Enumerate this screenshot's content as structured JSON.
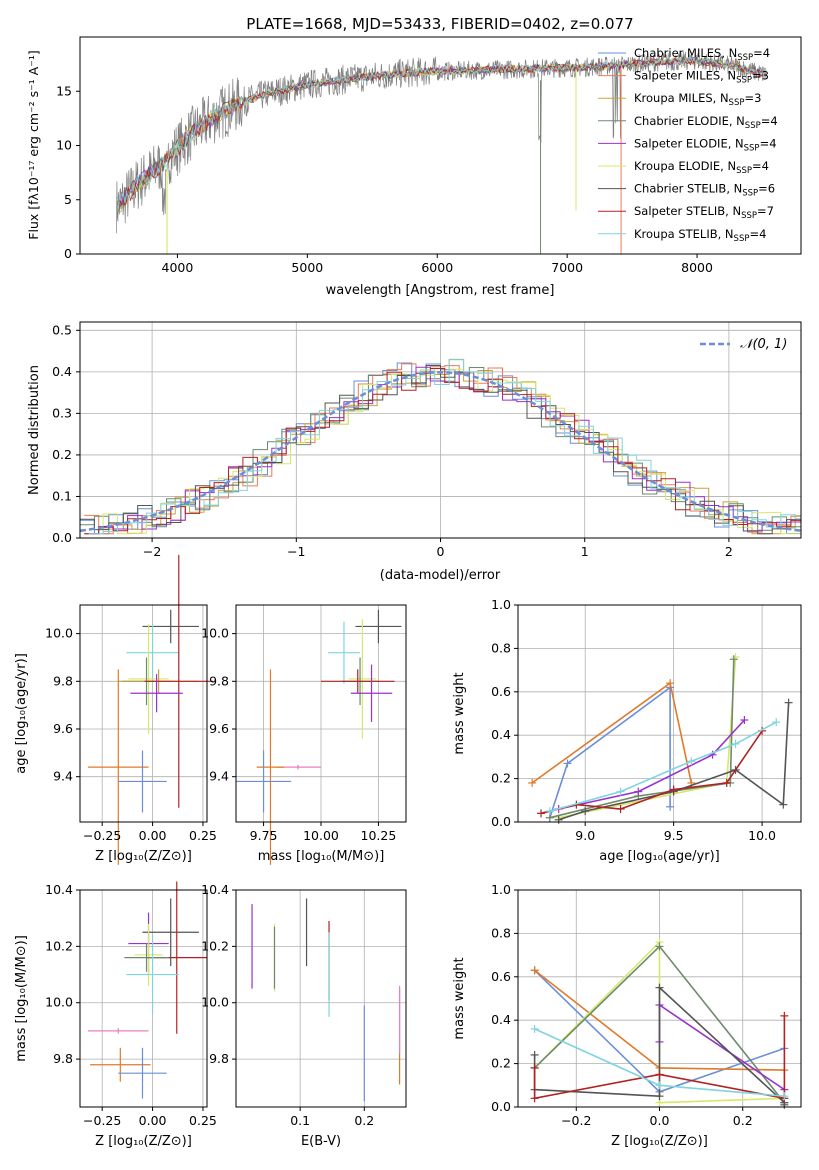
{
  "colors": {
    "chabrier_miles": "#6a8fd8",
    "salpeter_miles": "#ee7a55",
    "kroupa_miles": "#c9a23c",
    "chabrier_elodie": "#6e8a6e",
    "salpeter_elodie": "#9932cc",
    "kroupa_elodie": "#d6e86a",
    "chabrier_stelib": "#555555",
    "salpeter_stelib": "#b22222",
    "kroupa_stelib": "#80d4e0",
    "orange": "#e07a2a",
    "green": "#9acd32",
    "pink": "#e87fc0",
    "gray": "#7f7f7f",
    "normal": "#6a8fd8"
  },
  "chart_data": [
    {
      "id": "spectrum",
      "type": "line",
      "title": "PLATE=1668, MJD=53433, FIBERID=0402, z=0.077",
      "xlabel": "wavelength [Angstrom, rest frame]",
      "ylabel": "Flux [fλ10⁻¹⁷ erg cm⁻² s⁻¹ A⁻¹]",
      "xlim": [
        3250,
        8800
      ],
      "ylim": [
        0,
        20
      ],
      "xticks": [
        4000,
        5000,
        6000,
        7000,
        8000
      ],
      "yticks": [
        0,
        5,
        10,
        15
      ],
      "legend_position": "top-right",
      "continuum": {
        "x": [
          3550,
          3700,
          3900,
          4100,
          4300,
          4500,
          4700,
          5000,
          5300,
          5600,
          5900,
          6200,
          6500,
          6800,
          7100,
          7400,
          7700,
          8000,
          8300,
          8500
        ],
        "y": [
          4.5,
          6.5,
          8.5,
          11.0,
          12.8,
          14.0,
          14.8,
          15.6,
          16.1,
          16.5,
          16.8,
          16.9,
          17.0,
          17.1,
          17.2,
          17.4,
          17.7,
          17.8,
          17.3,
          16.6
        ]
      },
      "series": [
        {
          "name": "Chabrier MILES, N_SSP=4",
          "label": "Chabrier MILES, N",
          "sub": "SSP",
          "count": "=4",
          "color_key": "chabrier_miles"
        },
        {
          "name": "Salpeter MILES, N_SSP=3",
          "label": "Salpeter MILES, N",
          "sub": "SSP",
          "count": "=3",
          "color_key": "salpeter_miles"
        },
        {
          "name": "Kroupa MILES, N_SSP=3",
          "label": "Kroupa MILES, N",
          "sub": "SSP",
          "count": "=3",
          "color_key": "kroupa_miles"
        },
        {
          "name": "Chabrier ELODIE, N_SSP=4",
          "label": "Chabrier ELODIE, N",
          "sub": "SSP",
          "count": "=4",
          "color_key": "chabrier_elodie"
        },
        {
          "name": "Salpeter ELODIE, N_SSP=4",
          "label": "Salpeter ELODIE, N",
          "sub": "SSP",
          "count": "=4",
          "color_key": "salpeter_elodie"
        },
        {
          "name": "Kroupa ELODIE, N_SSP=4",
          "label": "Kroupa ELODIE, N",
          "sub": "SSP",
          "count": "=4",
          "color_key": "kroupa_elodie"
        },
        {
          "name": "Chabrier STELIB, N_SSP=6",
          "label": "Chabrier STELIB, N",
          "sub": "SSP",
          "count": "=6",
          "color_key": "chabrier_stelib"
        },
        {
          "name": "Salpeter STELIB, N_SSP=7",
          "label": "Salpeter STELIB, N",
          "sub": "SSP",
          "count": "=7",
          "color_key": "salpeter_stelib"
        },
        {
          "name": "Kroupa STELIB, N_SSP=4",
          "label": "Kroupa STELIB, N",
          "sub": "SSP",
          "count": "=4",
          "color_key": "kroupa_stelib"
        }
      ]
    },
    {
      "id": "residuals",
      "type": "histogram",
      "xlabel": "(data-model)/error",
      "ylabel": "Normed distribution",
      "xlim": [
        -2.5,
        2.5
      ],
      "ylim": [
        0,
        0.52
      ],
      "xticks": [
        -2,
        -1,
        0,
        1,
        2
      ],
      "yticks": [
        0.0,
        0.1,
        0.2,
        0.3,
        0.4,
        0.5
      ],
      "bin_width": 0.1,
      "normal_label": "𝒩(0, 1)",
      "legend_position": "top-right"
    },
    {
      "id": "age_vs_z",
      "type": "errorbar",
      "xlabel": "Z [log₁₀(Z/Z⊙)]",
      "ylabel": "age  [log₁₀(age/yr)]",
      "xlim": [
        -0.36,
        0.27
      ],
      "ylim": [
        9.21,
        10.12
      ],
      "xticks": [
        -0.25,
        0.0,
        0.25
      ],
      "yticks": [
        9.4,
        9.6,
        9.8,
        10.0
      ],
      "points": [
        {
          "x": 0.09,
          "y": 10.03,
          "xerr": 0.14,
          "yerr": 0.07,
          "color_key": "chabrier_stelib"
        },
        {
          "x": 0.0,
          "y": 9.92,
          "xerr": 0.13,
          "yerr": 0.12,
          "color_key": "kroupa_stelib"
        },
        {
          "x": -0.02,
          "y": 9.81,
          "xerr": 0.1,
          "yerr": 0.23,
          "color_key": "kroupa_elodie"
        },
        {
          "x": -0.03,
          "y": 9.8,
          "xerr": 0.12,
          "yerr": 0.1,
          "color_key": "chabrier_elodie"
        },
        {
          "x": 0.03,
          "y": 9.8,
          "xerr": 0.2,
          "yerr": 0.05,
          "color_key": "kroupa_miles"
        },
        {
          "x": 0.13,
          "y": 9.8,
          "xerr": 0.17,
          "yerr": 0.53,
          "color_key": "salpeter_stelib"
        },
        {
          "x": 0.02,
          "y": 9.75,
          "xerr": 0.13,
          "yerr": 0.08,
          "color_key": "salpeter_elodie"
        },
        {
          "x": -0.17,
          "y": 9.44,
          "xerr": 0.15,
          "yerr": 0.41,
          "color_key": "orange"
        },
        {
          "x": -0.05,
          "y": 9.38,
          "xerr": 0.12,
          "yerr": 0.13,
          "color_key": "chabrier_miles"
        }
      ]
    },
    {
      "id": "age_vs_mass",
      "type": "errorbar",
      "xlabel": "mass [log₁₀(M/M⊙)]",
      "ylabel": "",
      "xlim": [
        9.63,
        10.37
      ],
      "ylim": [
        9.21,
        10.12
      ],
      "xticks": [
        9.75,
        10.0,
        10.25
      ],
      "yticks": [
        9.4,
        9.6,
        9.8,
        10.0
      ],
      "points": [
        {
          "x": 10.25,
          "y": 10.03,
          "xerr": 0.1,
          "yerr": 0.07,
          "color_key": "chabrier_stelib"
        },
        {
          "x": 10.1,
          "y": 9.92,
          "xerr": 0.07,
          "yerr": 0.13,
          "color_key": "kroupa_stelib"
        },
        {
          "x": 10.18,
          "y": 9.81,
          "xerr": 0.06,
          "yerr": 0.25,
          "color_key": "kroupa_elodie"
        },
        {
          "x": 10.17,
          "y": 9.8,
          "xerr": 0.08,
          "yerr": 0.1,
          "color_key": "chabrier_elodie"
        },
        {
          "x": 10.16,
          "y": 9.8,
          "xerr": 0.16,
          "yerr": 0.05,
          "color_key": "salpeter_stelib"
        },
        {
          "x": 10.22,
          "y": 9.75,
          "xerr": 0.09,
          "yerr": 0.12,
          "color_key": "salpeter_elodie"
        },
        {
          "x": 9.9,
          "y": 9.44,
          "xerr": 0.1,
          "yerr": 0.01,
          "color_key": "pink"
        },
        {
          "x": 9.78,
          "y": 9.44,
          "xerr": 0.06,
          "yerr": 0.41,
          "color_key": "orange"
        },
        {
          "x": 9.75,
          "y": 9.38,
          "xerr": 0.12,
          "yerr": 0.13,
          "color_key": "chabrier_miles"
        }
      ]
    },
    {
      "id": "weight_vs_age",
      "type": "line",
      "xlabel": "age  [log₁₀(age/yr)]",
      "ylabel": "mass weight",
      "xlim": [
        8.62,
        10.22
      ],
      "ylim": [
        0,
        1
      ],
      "xticks": [
        9.0,
        9.5,
        10.0
      ],
      "yticks": [
        0.0,
        0.2,
        0.4,
        0.6,
        0.8,
        1.0
      ],
      "series": [
        {
          "color_key": "chabrier_miles",
          "x": [
            8.8,
            8.9,
            9.48,
            9.48
          ],
          "y": [
            0.02,
            0.27,
            0.62,
            0.07
          ]
        },
        {
          "color_key": "orange",
          "x": [
            8.7,
            9.48,
            9.6
          ],
          "y": [
            0.18,
            0.64,
            0.18
          ]
        },
        {
          "color_key": "kroupa_elodie",
          "x": [
            8.85,
            9.8,
            9.85
          ],
          "y": [
            0.02,
            0.18,
            0.76
          ]
        },
        {
          "color_key": "chabrier_elodie",
          "x": [
            8.8,
            9.3,
            9.82,
            9.84
          ],
          "y": [
            0.02,
            0.12,
            0.18,
            0.75
          ]
        },
        {
          "color_key": "salpeter_elodie",
          "x": [
            8.85,
            9.3,
            9.72,
            9.9
          ],
          "y": [
            0.06,
            0.14,
            0.31,
            0.47
          ]
        },
        {
          "color_key": "chabrier_stelib",
          "x": [
            8.85,
            9.0,
            9.5,
            9.85,
            10.12,
            10.15
          ],
          "y": [
            0.01,
            0.05,
            0.14,
            0.24,
            0.08,
            0.55
          ]
        },
        {
          "color_key": "salpeter_stelib",
          "x": [
            8.75,
            8.95,
            9.2,
            9.5,
            9.8,
            10.0
          ],
          "y": [
            0.04,
            0.08,
            0.06,
            0.15,
            0.18,
            0.42
          ]
        },
        {
          "color_key": "kroupa_stelib",
          "x": [
            8.8,
            9.2,
            9.6,
            9.85,
            10.08
          ],
          "y": [
            0.05,
            0.14,
            0.28,
            0.36,
            0.46
          ]
        }
      ]
    },
    {
      "id": "mass_vs_z",
      "type": "errorbar",
      "xlabel": "Z [log₁₀(Z/Z⊙)]",
      "ylabel": "mass [log₁₀(M/M⊙)]",
      "xlim": [
        -0.36,
        0.27
      ],
      "ylim": [
        9.63,
        10.4
      ],
      "xticks": [
        -0.25,
        0.0,
        0.25
      ],
      "yticks": [
        9.8,
        10.0,
        10.2,
        10.4
      ],
      "points": [
        {
          "x": 0.09,
          "y": 10.25,
          "xerr": 0.14,
          "yerr": 0.12,
          "color_key": "chabrier_stelib"
        },
        {
          "x": -0.02,
          "y": 10.21,
          "xerr": 0.1,
          "yerr": 0.11,
          "color_key": "salpeter_elodie"
        },
        {
          "x": -0.02,
          "y": 10.17,
          "xerr": 0.07,
          "yerr": 0.11,
          "color_key": "kroupa_elodie"
        },
        {
          "x": 0.12,
          "y": 10.16,
          "xerr": 0.15,
          "yerr": 0.27,
          "color_key": "salpeter_stelib"
        },
        {
          "x": -0.03,
          "y": 10.16,
          "xerr": 0.11,
          "yerr": 0.05,
          "color_key": "chabrier_elodie"
        },
        {
          "x": 0.0,
          "y": 10.1,
          "xerr": 0.13,
          "yerr": 0.14,
          "color_key": "kroupa_stelib"
        },
        {
          "x": -0.17,
          "y": 9.9,
          "xerr": 0.15,
          "yerr": 0.01,
          "color_key": "pink"
        },
        {
          "x": -0.16,
          "y": 9.78,
          "xerr": 0.15,
          "yerr": 0.06,
          "color_key": "orange"
        },
        {
          "x": -0.05,
          "y": 9.75,
          "xerr": 0.12,
          "yerr": 0.09,
          "color_key": "chabrier_miles"
        }
      ]
    },
    {
      "id": "mass_vs_ebv",
      "type": "errorbar",
      "xlabel": "E(B-V)",
      "ylabel": "",
      "xlim": [
        0.0,
        0.265
      ],
      "ylim": [
        9.63,
        10.4
      ],
      "xticks": [
        0.1,
        0.2
      ],
      "yticks": [
        9.8,
        10.0,
        10.2,
        10.4
      ],
      "points": [
        {
          "x": 0.025,
          "y": 10.2,
          "yerr": 0.15,
          "color_key": "salpeter_elodie"
        },
        {
          "x": 0.06,
          "y": 10.16,
          "yerr": 0.12,
          "color_key": "kroupa_elodie"
        },
        {
          "x": 0.06,
          "y": 10.16,
          "yerr": 0.11,
          "color_key": "chabrier_elodie"
        },
        {
          "x": 0.11,
          "y": 10.25,
          "yerr": 0.12,
          "color_key": "chabrier_stelib"
        },
        {
          "x": 0.145,
          "y": 10.15,
          "yerr": 0.14,
          "color_key": "salpeter_stelib"
        },
        {
          "x": 0.145,
          "y": 10.1,
          "yerr": 0.15,
          "color_key": "kroupa_stelib"
        },
        {
          "x": 0.2,
          "y": 9.82,
          "yerr": 0.17,
          "color_key": "chabrier_miles"
        },
        {
          "x": 0.255,
          "y": 9.88,
          "yerr": 0.17,
          "color_key": "orange"
        },
        {
          "x": 0.255,
          "y": 9.94,
          "yerr": 0.12,
          "color_key": "pink"
        }
      ]
    },
    {
      "id": "weight_vs_z",
      "type": "line",
      "xlabel": "Z [log₁₀(Z/Z⊙)]",
      "ylabel": "mass weight",
      "xlim": [
        -0.34,
        0.34
      ],
      "ylim": [
        0,
        1
      ],
      "xticks": [
        -0.2,
        0.0,
        0.2
      ],
      "yticks": [
        0.0,
        0.2,
        0.4,
        0.6,
        0.8,
        1.0
      ],
      "series": [
        {
          "color_key": "chabrier_miles",
          "x": [
            -0.3,
            0.0,
            0.3
          ],
          "y": [
            0.63,
            0.07,
            0.27
          ]
        },
        {
          "color_key": "orange",
          "x": [
            -0.3,
            0.0,
            0.3
          ],
          "y": [
            0.63,
            0.18,
            0.17
          ]
        },
        {
          "color_key": "kroupa_elodie",
          "x": [
            -0.3,
            0.0,
            0.0,
            0.3
          ],
          "y": [
            0.18,
            0.76,
            0.02,
            0.04
          ]
        },
        {
          "color_key": "chabrier_elodie",
          "x": [
            -0.3,
            0.0,
            0.3
          ],
          "y": [
            0.18,
            0.74,
            0.02
          ]
        },
        {
          "color_key": "salpeter_elodie",
          "x": [
            0.0,
            0.0,
            0.3
          ],
          "y": [
            0.3,
            0.47,
            0.08
          ]
        },
        {
          "color_key": "chabrier_stelib",
          "x": [
            -0.3,
            -0.3,
            0.0,
            0.0,
            0.3,
            0.3
          ],
          "y": [
            0.24,
            0.08,
            0.05,
            0.55,
            0.02,
            0.01
          ]
        },
        {
          "color_key": "salpeter_stelib",
          "x": [
            -0.3,
            -0.3,
            0.0,
            0.3,
            0.3
          ],
          "y": [
            0.18,
            0.04,
            0.15,
            0.04,
            0.42
          ]
        },
        {
          "color_key": "kroupa_stelib",
          "x": [
            -0.3,
            0.0,
            0.3
          ],
          "y": [
            0.36,
            0.1,
            0.05
          ]
        }
      ]
    }
  ]
}
